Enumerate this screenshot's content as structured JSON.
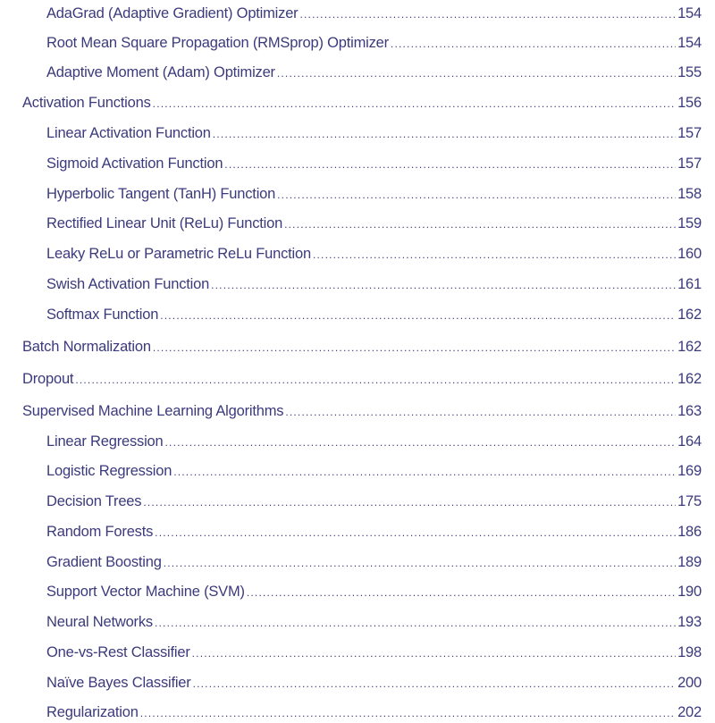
{
  "toc": [
    {
      "level": 2,
      "title": "AdaGrad (Adaptive Gradient) Optimizer",
      "page": "154"
    },
    {
      "level": 2,
      "title": "Root Mean Square Propagation (RMSprop) Optimizer",
      "page": "154"
    },
    {
      "level": 2,
      "title": "Adaptive Moment (Adam) Optimizer",
      "page": "155"
    },
    {
      "level": 1,
      "title": "Activation Functions",
      "page": "156"
    },
    {
      "level": 2,
      "title": "Linear Activation Function",
      "page": "157"
    },
    {
      "level": 2,
      "title": "Sigmoid Activation Function",
      "page": "157"
    },
    {
      "level": 2,
      "title": "Hyperbolic Tangent (TanH) Function",
      "page": "158"
    },
    {
      "level": 2,
      "title": "Rectified Linear Unit (ReLu) Function",
      "page": "159"
    },
    {
      "level": 2,
      "title": "Leaky ReLu or Parametric ReLu Function",
      "page": "160"
    },
    {
      "level": 2,
      "title": "Swish Activation Function",
      "page": "161"
    },
    {
      "level": 2,
      "title": "Softmax Function",
      "page": "162"
    },
    {
      "level": 1,
      "title": "Batch Normalization",
      "page": "162"
    },
    {
      "level": 1,
      "title": "Dropout",
      "page": "162"
    },
    {
      "level": 1,
      "title": "Supervised Machine Learning Algorithms",
      "page": "163"
    },
    {
      "level": 2,
      "title": "Linear Regression",
      "page": "164"
    },
    {
      "level": 2,
      "title": "Logistic Regression",
      "page": "169"
    },
    {
      "level": 2,
      "title": "Decision Trees",
      "page": "175"
    },
    {
      "level": 2,
      "title": "Random Forests",
      "page": "186"
    },
    {
      "level": 2,
      "title": "Gradient Boosting",
      "page": "189"
    },
    {
      "level": 2,
      "title": "Support Vector Machine (SVM)",
      "page": "190"
    },
    {
      "level": 2,
      "title": "Neural Networks",
      "page": "193"
    },
    {
      "level": 2,
      "title": "One-vs-Rest Classifier",
      "page": "198"
    },
    {
      "level": 2,
      "title": "Naïve Bayes Classifier",
      "page": "200"
    },
    {
      "level": 2,
      "title": "Regularization",
      "page": "202"
    }
  ],
  "colors": {
    "text": "#3b3a7c",
    "background": "#ffffff"
  }
}
